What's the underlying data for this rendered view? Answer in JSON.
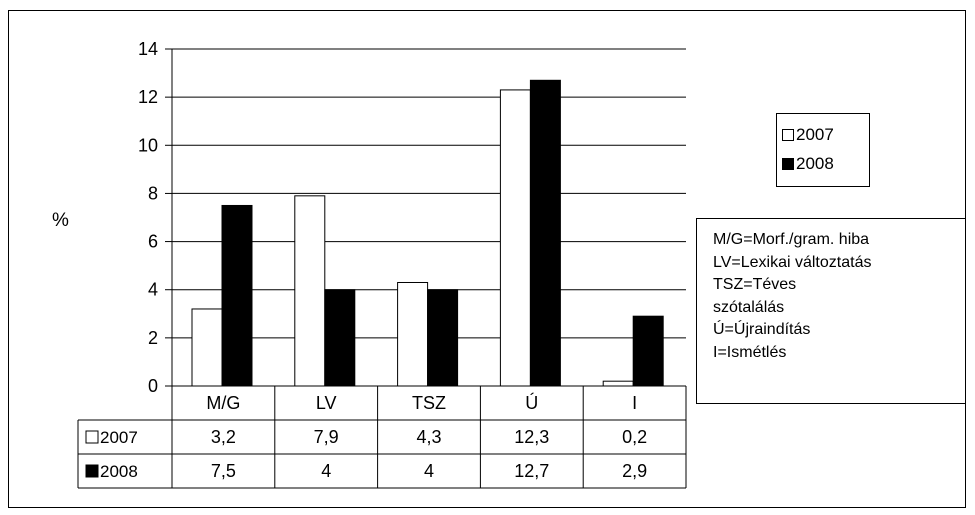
{
  "chart_data": {
    "type": "bar",
    "ylabel": "%",
    "ylim": [
      0,
      14
    ],
    "yticks": [
      0,
      2,
      4,
      6,
      8,
      10,
      12,
      14
    ],
    "grid": true,
    "categories": [
      "M/G",
      "LV",
      "TSZ",
      "Ú",
      "I"
    ],
    "series": [
      {
        "name": "2007",
        "color": "#ffffff",
        "values": [
          3.2,
          7.9,
          4.3,
          12.3,
          0.2
        ],
        "value_labels": [
          "3,2",
          "7,9",
          "4,3",
          "12,3",
          "0,2"
        ]
      },
      {
        "name": "2008",
        "color": "#000000",
        "values": [
          7.5,
          4,
          4,
          12.7,
          2.9
        ],
        "value_labels": [
          "7,5",
          "4",
          "4",
          "12,7",
          "2,9"
        ]
      }
    ],
    "legend_position": "right",
    "abbreviations": [
      "M/G=Morf./gram. hiba",
      "LV=Lexikai változtatás",
      "TSZ=Téves",
      "szótalálás",
      "Ú=Újraindítás",
      "I=Ismétlés"
    ]
  }
}
